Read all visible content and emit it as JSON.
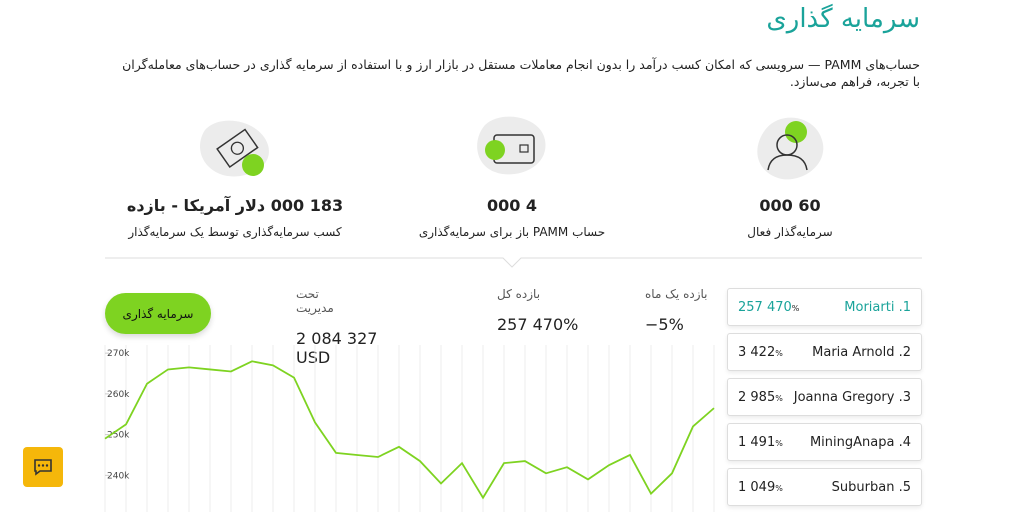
{
  "header": {
    "title": "سرمایه گذاری",
    "description": "حساب‌های PAMM — سرویسی که امکان کسب درآمد را بدون انجام معاملات مستقل در بازار ارز و با استفاده از سرمایه گذاری در حساب‌های معامله‌گران با تجربه، فراهم می‌سازد."
  },
  "stats": [
    {
      "value": "60 000",
      "label": "سرمایه‌گذار فعال"
    },
    {
      "value": "4 000",
      "label": "حساب PAMM باز برای سرمایه‌گذاری"
    },
    {
      "value": "183 000 دلار آمریکا - بازده",
      "label": "کسب سرمایه‌گذاری توسط یک سرمایه‌گذار"
    }
  ],
  "summary": {
    "button": "سرمایه گذاری",
    "items": [
      {
        "label": "بازده یک ماه",
        "value": "−5%"
      },
      {
        "label": "بازده کل",
        "value": "257 470%"
      },
      {
        "label": "تحت مدیریت",
        "value": "2 084 327 USD"
      }
    ]
  },
  "leaderboard": [
    {
      "rank": ".1",
      "name": "Moriarti",
      "value": "257 470",
      "unit": "%"
    },
    {
      "rank": ".2",
      "name": "Maria Arnold",
      "value": "3 422",
      "unit": "%"
    },
    {
      "rank": ".3",
      "name": "Joanna Gregory",
      "value": "2 985",
      "unit": "%"
    },
    {
      "rank": ".4",
      "name": "MiningAnapa",
      "value": "1 491",
      "unit": "%"
    },
    {
      "rank": ".5",
      "name": "Suburban",
      "value": "1 049",
      "unit": "%"
    }
  ],
  "chart": {
    "type": "line",
    "color": "#7ed321",
    "values": [
      249000,
      252500,
      262500,
      266000,
      266500,
      266000,
      265500,
      268000,
      267000,
      264000,
      253000,
      245500,
      245000,
      244500,
      247000,
      243500,
      238000,
      243000,
      234500,
      243000,
      243500,
      240500,
      242000,
      239000,
      242500,
      245000,
      235500,
      240500,
      252000,
      256500
    ],
    "ylim": [
      231000,
      272000
    ],
    "yticks": [
      {
        "value": 240000,
        "label": "240k"
      },
      {
        "value": 250000,
        "label": "250k"
      },
      {
        "value": 260000,
        "label": "260k"
      },
      {
        "value": 270000,
        "label": "270k"
      }
    ]
  }
}
